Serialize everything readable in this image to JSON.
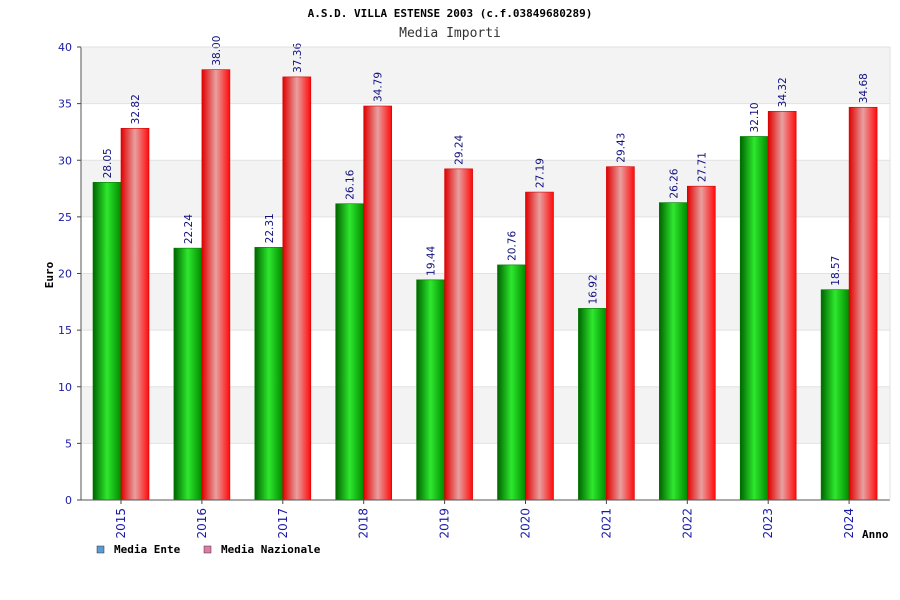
{
  "chart_data": {
    "type": "bar",
    "title": "A.S.D. VILLA ESTENSE 2003 (c.f.03849680289)",
    "subtitle": "Media Importi",
    "xlabel": "Anno",
    "ylabel": "Euro",
    "ylim": [
      0,
      40
    ],
    "yticks": [
      0,
      5,
      10,
      15,
      20,
      25,
      30,
      35,
      40
    ],
    "grid": true,
    "legend_position": "bottom-left",
    "categories": [
      "2015",
      "2016",
      "2017",
      "2018",
      "2019",
      "2020",
      "2021",
      "2022",
      "2023",
      "2024"
    ],
    "series": [
      {
        "name": "Media Ente",
        "color": "#00a000",
        "legend_color": "#5b9bd5",
        "values": [
          28.05,
          22.24,
          22.31,
          26.16,
          19.44,
          20.76,
          16.92,
          26.26,
          32.1,
          18.57
        ],
        "labels": [
          "28.05",
          "22.24",
          "22.31",
          "26.16",
          "19.44",
          "20.76",
          "16.92",
          "26.26",
          "32.10",
          "18.57"
        ]
      },
      {
        "name": "Media Nazionale",
        "color": "#ee0000",
        "legend_color": "#e07ba7",
        "values": [
          32.82,
          38.0,
          37.36,
          34.79,
          29.24,
          27.19,
          29.43,
          27.71,
          34.32,
          34.68
        ],
        "labels": [
          "32.82",
          "38.00",
          "37.36",
          "34.79",
          "29.24",
          "27.19",
          "29.43",
          "27.71",
          "34.32",
          "34.68"
        ]
      }
    ]
  }
}
